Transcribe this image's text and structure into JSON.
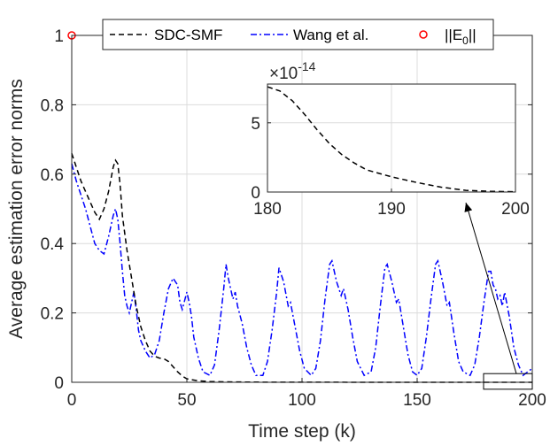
{
  "chart_data": {
    "type": "line",
    "xlabel": "Time step (k)",
    "ylabel": "Average estimation error norms",
    "xlim": [
      0,
      200
    ],
    "ylim": [
      0,
      1
    ],
    "x_ticks": [
      "0",
      "50",
      "100",
      "150",
      "200"
    ],
    "y_ticks": [
      "0",
      "0.2",
      "0.4",
      "0.6",
      "0.8",
      "1"
    ],
    "grid": true,
    "legend_position": "top",
    "legend": [
      "SDC-SMF",
      "Wang et al.",
      "||E_0||"
    ],
    "series": [
      {
        "name": "SDC-SMF",
        "color": "#000000",
        "style": "dashed",
        "points": [
          [
            0,
            0.66
          ],
          [
            2,
            0.62
          ],
          [
            4,
            0.58
          ],
          [
            6,
            0.55
          ],
          [
            8,
            0.52
          ],
          [
            10,
            0.49
          ],
          [
            12,
            0.47
          ],
          [
            14,
            0.5
          ],
          [
            16,
            0.55
          ],
          [
            18,
            0.62
          ],
          [
            19,
            0.64
          ],
          [
            20,
            0.63
          ],
          [
            21,
            0.57
          ],
          [
            22,
            0.48
          ],
          [
            24,
            0.38
          ],
          [
            26,
            0.3
          ],
          [
            28,
            0.22
          ],
          [
            30,
            0.16
          ],
          [
            32,
            0.12
          ],
          [
            34,
            0.09
          ],
          [
            36,
            0.075
          ],
          [
            38,
            0.07
          ],
          [
            40,
            0.068
          ],
          [
            42,
            0.06
          ],
          [
            44,
            0.045
          ],
          [
            46,
            0.03
          ],
          [
            48,
            0.018
          ],
          [
            50,
            0.01
          ],
          [
            55,
            0.004
          ],
          [
            60,
            0.002
          ],
          [
            70,
            0.001
          ],
          [
            80,
            0.0005
          ],
          [
            100,
            0.0002
          ],
          [
            150,
            0.0
          ],
          [
            200,
            0.0
          ]
        ]
      },
      {
        "name": "Wang et al.",
        "color": "#0000ff",
        "style": "dashdot",
        "points": [
          [
            0,
            0.63
          ],
          [
            2,
            0.58
          ],
          [
            4,
            0.54
          ],
          [
            6,
            0.5
          ],
          [
            8,
            0.45
          ],
          [
            10,
            0.4
          ],
          [
            12,
            0.38
          ],
          [
            14,
            0.37
          ],
          [
            16,
            0.42
          ],
          [
            18,
            0.48
          ],
          [
            19,
            0.5
          ],
          [
            20,
            0.47
          ],
          [
            21,
            0.4
          ],
          [
            22,
            0.32
          ],
          [
            23,
            0.25
          ],
          [
            24,
            0.22
          ],
          [
            25,
            0.2
          ],
          [
            26,
            0.23
          ],
          [
            27,
            0.26
          ],
          [
            28,
            0.21
          ],
          [
            29,
            0.15
          ],
          [
            30,
            0.12
          ],
          [
            32,
            0.09
          ],
          [
            34,
            0.07
          ],
          [
            36,
            0.08
          ],
          [
            38,
            0.12
          ],
          [
            40,
            0.2
          ],
          [
            42,
            0.27
          ],
          [
            44,
            0.3
          ],
          [
            46,
            0.28
          ],
          [
            47,
            0.23
          ],
          [
            48,
            0.21
          ],
          [
            50,
            0.26
          ],
          [
            51,
            0.23
          ],
          [
            52,
            0.19
          ],
          [
            53,
            0.13
          ],
          [
            55,
            0.07
          ],
          [
            57,
            0.03
          ],
          [
            60,
            0.02
          ],
          [
            62,
            0.05
          ],
          [
            64,
            0.15
          ],
          [
            66,
            0.27
          ],
          [
            67,
            0.34
          ],
          [
            68,
            0.3
          ],
          [
            70,
            0.24
          ],
          [
            71,
            0.26
          ],
          [
            72,
            0.22
          ],
          [
            74,
            0.17
          ],
          [
            76,
            0.1
          ],
          [
            78,
            0.05
          ],
          [
            80,
            0.02
          ],
          [
            83,
            0.02
          ],
          [
            85,
            0.06
          ],
          [
            87,
            0.15
          ],
          [
            89,
            0.26
          ],
          [
            90,
            0.33
          ],
          [
            92,
            0.29
          ],
          [
            94,
            0.22
          ],
          [
            95,
            0.23
          ],
          [
            97,
            0.16
          ],
          [
            99,
            0.09
          ],
          [
            101,
            0.04
          ],
          [
            104,
            0.02
          ],
          [
            106,
            0.04
          ],
          [
            108,
            0.12
          ],
          [
            110,
            0.24
          ],
          [
            112,
            0.34
          ],
          [
            113,
            0.35
          ],
          [
            115,
            0.29
          ],
          [
            117,
            0.25
          ],
          [
            118,
            0.27
          ],
          [
            120,
            0.21
          ],
          [
            122,
            0.13
          ],
          [
            124,
            0.06
          ],
          [
            127,
            0.02
          ],
          [
            130,
            0.03
          ],
          [
            132,
            0.1
          ],
          [
            134,
            0.22
          ],
          [
            136,
            0.33
          ],
          [
            137,
            0.34
          ],
          [
            139,
            0.29
          ],
          [
            141,
            0.23
          ],
          [
            142,
            0.24
          ],
          [
            144,
            0.16
          ],
          [
            146,
            0.08
          ],
          [
            148,
            0.03
          ],
          [
            150,
            0.02
          ],
          [
            152,
            0.04
          ],
          [
            154,
            0.13
          ],
          [
            156,
            0.24
          ],
          [
            158,
            0.34
          ],
          [
            159,
            0.35
          ],
          [
            161,
            0.29
          ],
          [
            163,
            0.22
          ],
          [
            164,
            0.23
          ],
          [
            166,
            0.14
          ],
          [
            168,
            0.06
          ],
          [
            170,
            0.03
          ],
          [
            173,
            0.02
          ],
          [
            175,
            0.05
          ],
          [
            177,
            0.13
          ],
          [
            179,
            0.23
          ],
          [
            181,
            0.32
          ],
          [
            182,
            0.32
          ],
          [
            183,
            0.28
          ],
          [
            184,
            0.27
          ],
          [
            185,
            0.24
          ],
          [
            186,
            0.25
          ],
          [
            187,
            0.22
          ],
          [
            188,
            0.26
          ],
          [
            190,
            0.19
          ],
          [
            192,
            0.1
          ],
          [
            194,
            0.05
          ],
          [
            196,
            0.02
          ],
          [
            198,
            0.03
          ],
          [
            200,
            0.04
          ]
        ]
      },
      {
        "name": "||E_0||",
        "color": "#ff0000",
        "style": "marker-circle",
        "points": [
          [
            0,
            1.0
          ]
        ]
      }
    ],
    "inset": {
      "exponent_label": "×10",
      "exponent_power": "-14",
      "xlim": [
        180,
        200
      ],
      "ylim": [
        0,
        7.8
      ],
      "x_ticks": [
        "180",
        "190",
        "200"
      ],
      "y_ticks": [
        "0",
        "5"
      ],
      "series": [
        {
          "name": "SDC-SMF",
          "points": [
            [
              180,
              7.6
            ],
            [
              181,
              7.3
            ],
            [
              182,
              6.6
            ],
            [
              183,
              5.6
            ],
            [
              184,
              4.5
            ],
            [
              185,
              3.5
            ],
            [
              186,
              2.7
            ],
            [
              187,
              2.1
            ],
            [
              188,
              1.6
            ],
            [
              190,
              1.1
            ],
            [
              192,
              0.7
            ],
            [
              194,
              0.35
            ],
            [
              196,
              0.12
            ],
            [
              198,
              0.05
            ],
            [
              200,
              0.02
            ]
          ]
        }
      ]
    }
  }
}
